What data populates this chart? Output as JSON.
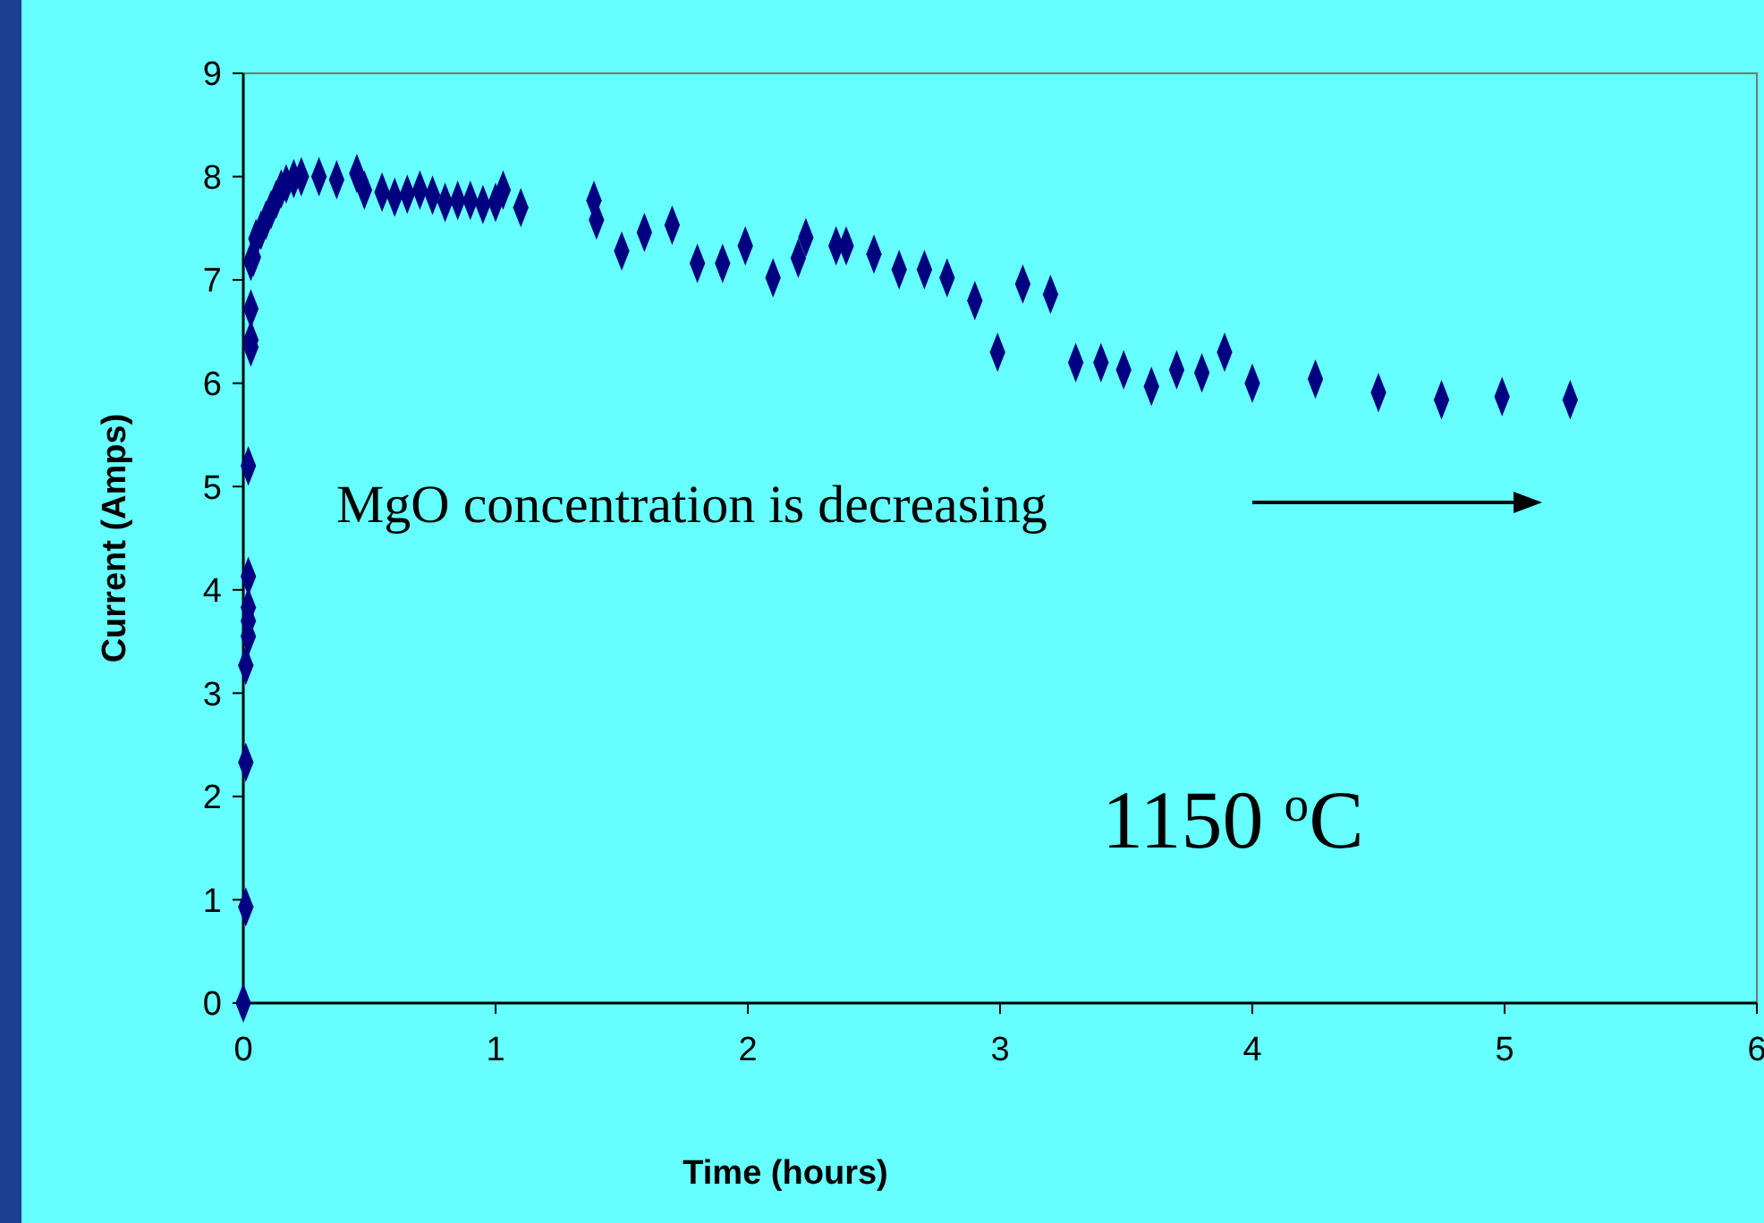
{
  "chart_data": {
    "type": "scatter",
    "xlabel": "Time (hours)",
    "ylabel": "Current (Amps)",
    "xlim": [
      0,
      6
    ],
    "xticks": [
      0,
      1,
      2,
      3,
      4,
      5,
      6
    ],
    "ylim": [
      0,
      9
    ],
    "yticks": [
      0,
      1,
      2,
      3,
      4,
      5,
      6,
      7,
      8,
      9
    ],
    "marker": "diamond",
    "annotations": [
      "MgO concentration is decreasing",
      "1150 $^{o}$C"
    ],
    "series": [
      {
        "color": "#000080",
        "x": [
          0,
          0.01,
          0.01,
          0.01,
          0.02,
          0.02,
          0.02,
          0.02,
          0.02,
          0.03,
          0.03,
          0.03,
          0.03,
          0.04,
          0.05,
          0.07,
          0.09,
          0.11,
          0.13,
          0.15,
          0.17,
          0.2,
          0.23,
          0.3,
          0.37,
          0.45,
          0.48,
          0.55,
          0.6,
          0.65,
          0.7,
          0.75,
          0.8,
          0.85,
          0.9,
          0.95,
          1.0,
          1.03,
          1.1,
          1.39,
          1.4,
          1.5,
          1.59,
          1.7,
          1.8,
          1.9,
          1.99,
          2.1,
          2.2,
          2.23,
          2.35,
          2.39,
          2.5,
          2.6,
          2.7,
          2.79,
          2.9,
          2.99,
          3.09,
          3.2,
          3.3,
          3.4,
          3.49,
          3.6,
          3.7,
          3.8,
          3.89,
          4.0,
          4.25,
          4.5,
          4.75,
          4.99,
          5.26
        ],
        "values": [
          0,
          0.93,
          2.33,
          3.27,
          3.55,
          3.7,
          3.83,
          4.13,
          5.2,
          6.35,
          6.42,
          6.72,
          7.18,
          7.22,
          7.4,
          7.48,
          7.58,
          7.68,
          7.78,
          7.88,
          7.93,
          7.98,
          8.0,
          8.0,
          7.97,
          8.03,
          7.87,
          7.85,
          7.8,
          7.83,
          7.87,
          7.82,
          7.75,
          7.77,
          7.77,
          7.73,
          7.75,
          7.87,
          7.7,
          7.77,
          7.58,
          7.28,
          7.46,
          7.53,
          7.16,
          7.16,
          7.33,
          7.02,
          7.21,
          7.41,
          7.33,
          7.33,
          7.25,
          7.1,
          7.1,
          7.02,
          6.8,
          6.3,
          6.96,
          6.86,
          6.2,
          6.2,
          6.13,
          5.97,
          6.13,
          6.1,
          6.3,
          6.0,
          6.04,
          5.91,
          5.84,
          5.87,
          5.84
        ]
      }
    ]
  }
}
